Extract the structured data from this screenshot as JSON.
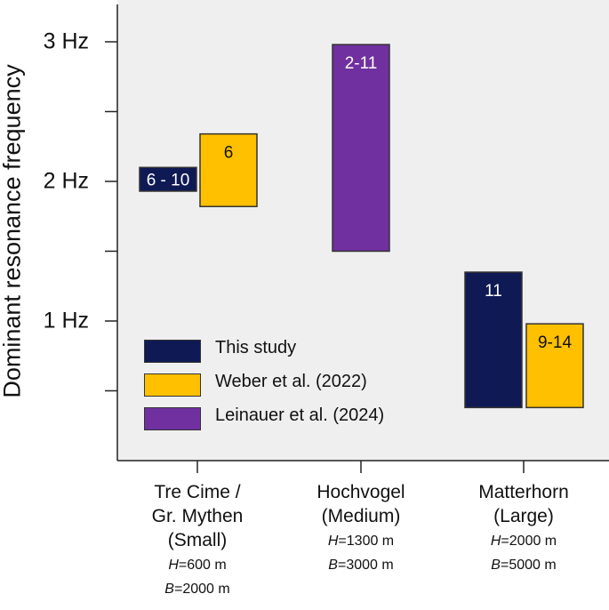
{
  "chart_data": {
    "type": "bar",
    "title": "",
    "ylabel": "Dominant resonance frequency",
    "xlabel": "",
    "ylim": [
      0,
      3.3
    ],
    "yticks": [
      {
        "value": 0.5,
        "label": ""
      },
      {
        "value": 1,
        "label": "1 Hz"
      },
      {
        "value": 1.5,
        "label": ""
      },
      {
        "value": 2,
        "label": "2 Hz"
      },
      {
        "value": 2.5,
        "label": ""
      },
      {
        "value": 3,
        "label": "3 Hz"
      }
    ],
    "categories": [
      {
        "name": "Tre Cime /\nGr. Mythen\n(Small)",
        "h_label": "H",
        "h_value": "=600 m",
        "b_label": "B",
        "b_value": "=2000 m"
      },
      {
        "name": "Hochvogel\n(Medium)",
        "h_label": "H",
        "h_value": "=1300 m",
        "b_label": "B",
        "b_value": "=3000 m"
      },
      {
        "name": "Matterhorn\n(Large)",
        "h_label": "H",
        "h_value": "=2000 m",
        "b_label": "B",
        "b_value": "=5000 m"
      }
    ],
    "series": [
      {
        "name": "This study",
        "color": "#0f1a54",
        "ranges": [
          {
            "category": 0,
            "low": 1.93,
            "high": 2.1,
            "label": "6 - 10"
          },
          {
            "category": 2,
            "low": 0.38,
            "high": 1.35,
            "label": "11"
          }
        ]
      },
      {
        "name": "Weber et al. (2022)",
        "color": "#ffc000",
        "ranges": [
          {
            "category": 0,
            "low": 1.82,
            "high": 2.34,
            "label": "6"
          },
          {
            "category": 2,
            "low": 0.38,
            "high": 0.98,
            "label": "9-14"
          }
        ]
      },
      {
        "name": "Leinauer et al. (2024)",
        "color": "#7030a0",
        "ranges": [
          {
            "category": 1,
            "low": 1.5,
            "high": 2.98,
            "label": "2-11"
          }
        ]
      }
    ],
    "legend_position": "lower-left"
  }
}
